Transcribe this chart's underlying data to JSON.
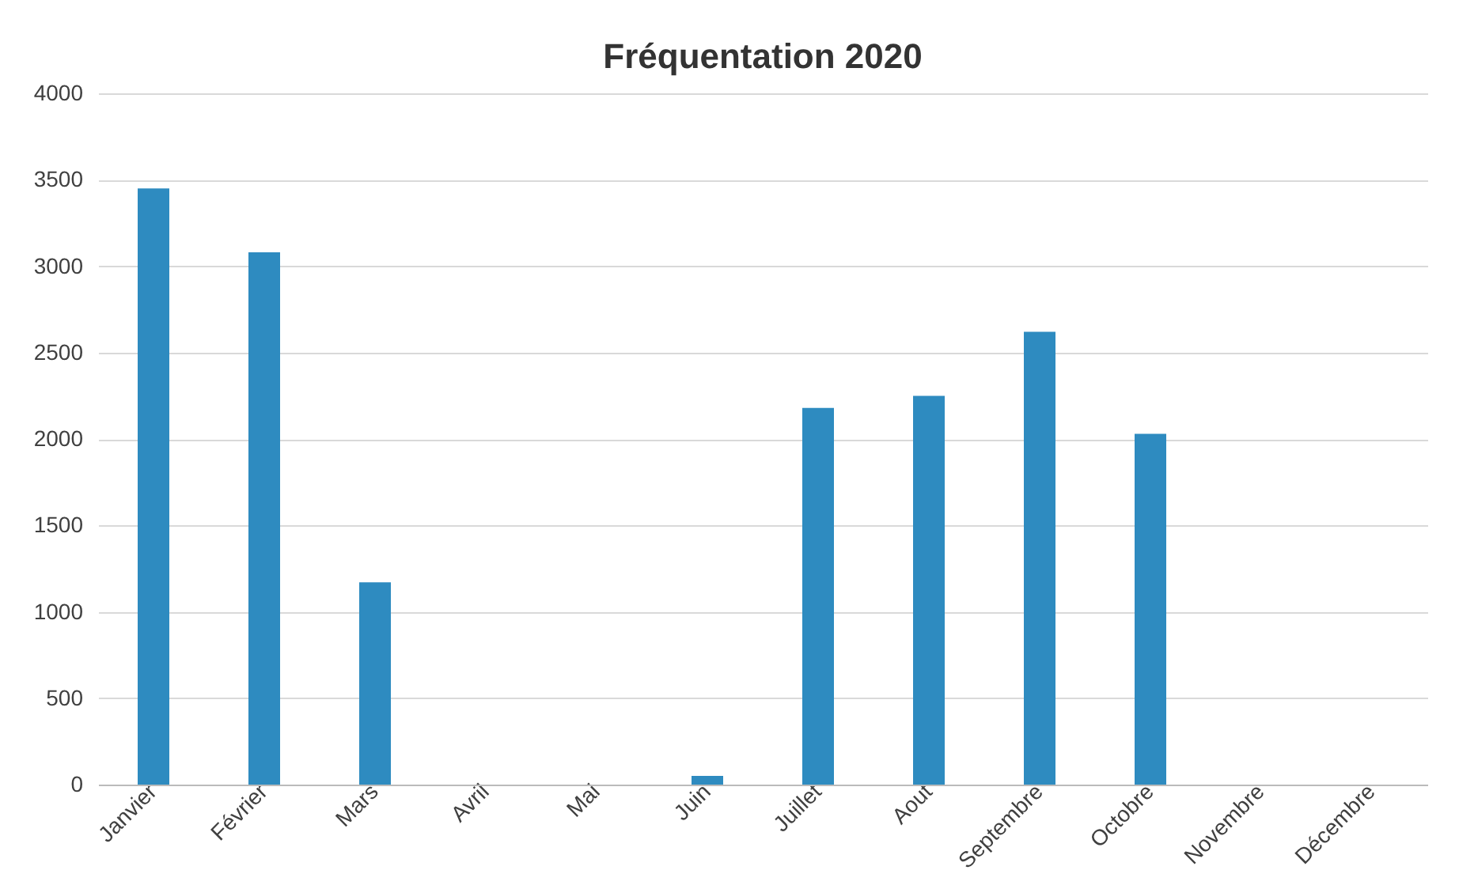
{
  "chart_data": {
    "type": "bar",
    "title": "Fréquentation 2020",
    "categories": [
      "Janvier",
      "Février",
      "Mars",
      "Avril",
      "Mai",
      "Juin",
      "Juillet",
      "Aout",
      "Septembre",
      "Octobre",
      "Novembre",
      "Décembre"
    ],
    "values": [
      3450,
      3080,
      1170,
      0,
      0,
      50,
      2180,
      2250,
      2620,
      2030,
      0,
      0
    ],
    "color": "#2e8bc0",
    "ylim": [
      0,
      4000
    ],
    "yticks": [
      0,
      500,
      1000,
      1500,
      2000,
      2500,
      3000,
      3500,
      4000
    ],
    "grid": "y"
  }
}
